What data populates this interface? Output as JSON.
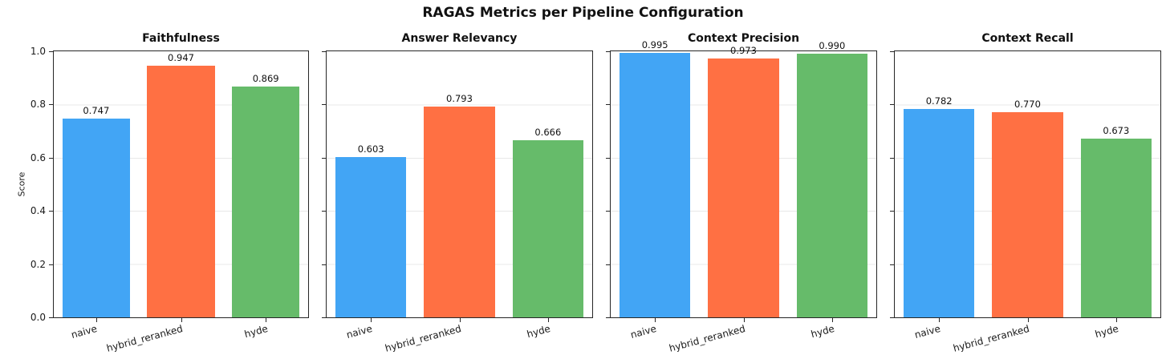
{
  "figure_title": "RAGAS Metrics per Pipeline Configuration",
  "bar_colors": [
    "#42A5F5",
    "#FF7043",
    "#66BB6A"
  ],
  "y_axis": {
    "label": "Score",
    "tick_labels": [
      "0.0",
      "0.2",
      "0.4",
      "0.6",
      "0.8",
      "1.0"
    ],
    "limits": [
      0.0,
      1.0
    ]
  },
  "chart_data": [
    {
      "type": "bar",
      "title": "Faithfulness",
      "categories": [
        "naive",
        "hybrid_reranked",
        "hyde"
      ],
      "values": [
        0.747,
        0.947,
        0.869
      ],
      "value_labels": [
        "0.747",
        "0.947",
        "0.869"
      ],
      "ylabel": "Score",
      "ylim": [
        0.0,
        1.0
      ],
      "grid": true,
      "legend": false
    },
    {
      "type": "bar",
      "title": "Answer Relevancy",
      "categories": [
        "naive",
        "hybrid_reranked",
        "hyde"
      ],
      "values": [
        0.603,
        0.793,
        0.666
      ],
      "value_labels": [
        "0.603",
        "0.793",
        "0.666"
      ],
      "ylabel": "",
      "ylim": [
        0.0,
        1.0
      ],
      "grid": true,
      "legend": false
    },
    {
      "type": "bar",
      "title": "Context Precision",
      "categories": [
        "naive",
        "hybrid_reranked",
        "hyde"
      ],
      "values": [
        0.995,
        0.973,
        0.99
      ],
      "value_labels": [
        "0.995",
        "0.973",
        "0.990"
      ],
      "ylabel": "",
      "ylim": [
        0.0,
        1.0
      ],
      "grid": true,
      "legend": false
    },
    {
      "type": "bar",
      "title": "Context Recall",
      "categories": [
        "naive",
        "hybrid_reranked",
        "hyde"
      ],
      "values": [
        0.782,
        0.77,
        0.673
      ],
      "value_labels": [
        "0.782",
        "0.770",
        "0.673"
      ],
      "ylabel": "",
      "ylim": [
        0.0,
        1.0
      ],
      "grid": true,
      "legend": false
    }
  ]
}
